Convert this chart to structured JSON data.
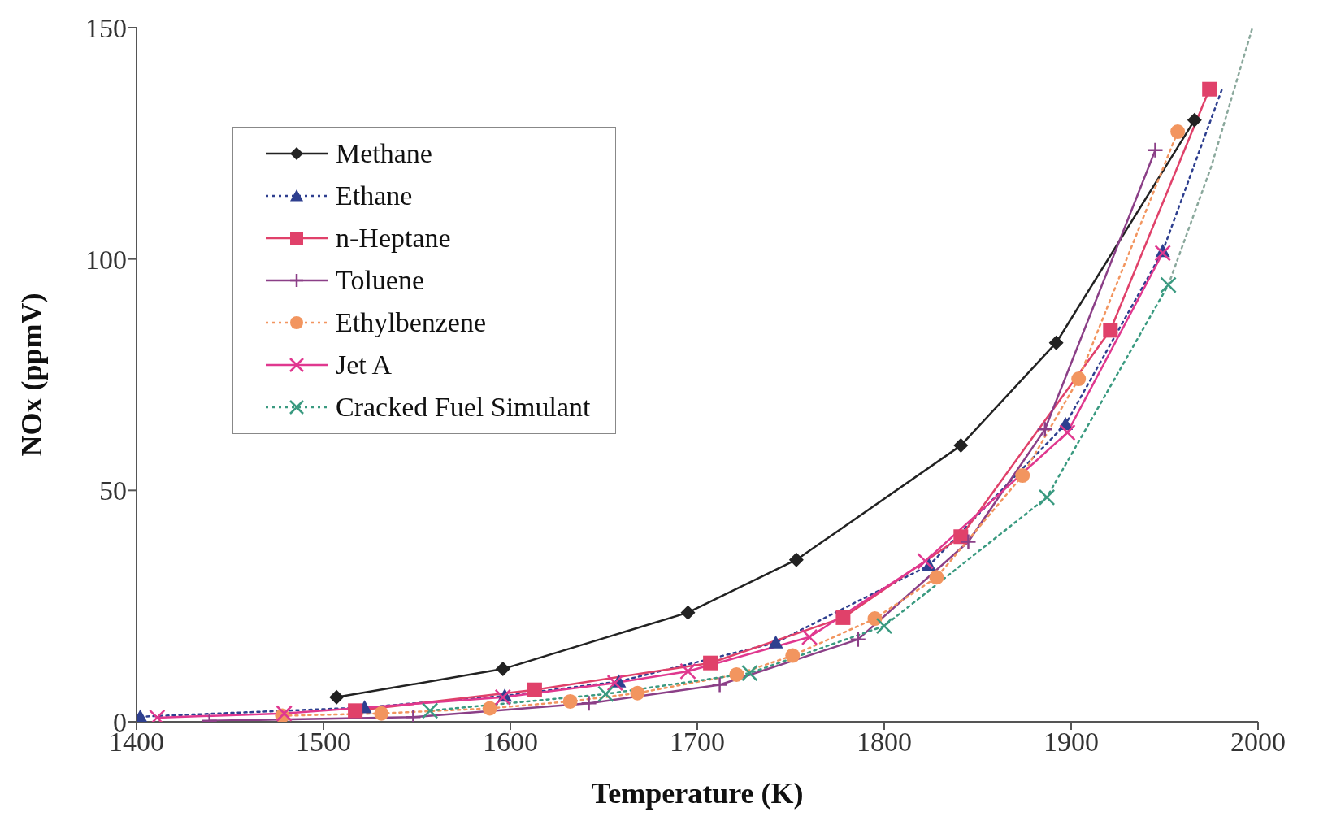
{
  "chart_data": {
    "type": "line",
    "xlabel": "Temperature (K)",
    "ylabel": "NOx (ppmV)",
    "xlim": [
      1400,
      2000
    ],
    "xticks": [
      1400,
      1500,
      1600,
      1700,
      1800,
      1900,
      2000
    ],
    "ylim": [
      0,
      150
    ],
    "yticks": [
      0,
      50,
      100,
      150
    ],
    "grid": false,
    "legend": "top left",
    "series": [
      {
        "name": "Methane",
        "color": "#222222",
        "marker": "diamond",
        "line_style": "solid",
        "x": [
          1507,
          1596,
          1695,
          1753,
          1841,
          1892,
          1966
        ],
        "values": [
          5.3,
          11.4,
          23.6,
          35,
          59.7,
          81.9,
          130
        ]
      },
      {
        "name": "Ethane",
        "color": "#2e3f8f",
        "marker": "triangle",
        "line_style": "dotted",
        "x": [
          1402,
          1522,
          1597,
          1658,
          1742,
          1824,
          1897,
          1949
        ],
        "values": [
          1.1,
          3.1,
          5.6,
          8.7,
          17.1,
          33.8,
          64.3,
          101.7
        ]
      },
      {
        "name": "n-Heptane",
        "color": "#e0416a",
        "marker": "square",
        "line_style": "solid",
        "x": [
          1517,
          1613,
          1707,
          1778,
          1841,
          1921,
          1974
        ],
        "values": [
          2.4,
          6.9,
          12.7,
          22.5,
          40,
          84.6,
          136.7
        ]
      },
      {
        "name": "Toluene",
        "color": "#8b3f87",
        "marker": "plus",
        "line_style": "solid",
        "x": [
          1439,
          1548,
          1642,
          1712,
          1786,
          1845,
          1886,
          1945
        ],
        "values": [
          0.2,
          1,
          4,
          8,
          17.8,
          38.9,
          63.2,
          123.5
        ]
      },
      {
        "name": "Ethylbenzene",
        "color": "#f2955f",
        "marker": "circle",
        "line_style": "dotted",
        "x": [
          1478,
          1531,
          1589,
          1632,
          1668,
          1721,
          1751,
          1795,
          1828,
          1874,
          1904,
          1957
        ],
        "values": [
          1.3,
          1.8,
          2.9,
          4.4,
          6.2,
          10.2,
          14.3,
          22.3,
          31.2,
          53.2,
          74.1,
          127.5
        ]
      },
      {
        "name": "Jet A",
        "color": "#e0388f",
        "marker": "cross",
        "line_style": "solid",
        "x": [
          1411,
          1479,
          1596,
          1656,
          1695,
          1760,
          1822,
          1898,
          1949
        ],
        "values": [
          0.9,
          1.8,
          5.3,
          8.4,
          10.9,
          18.3,
          34.7,
          62.5,
          101.3
        ]
      },
      {
        "name": "Cracked Fuel Simulant",
        "color": "#3a9a80",
        "marker": "cross",
        "line_style": "dotted",
        "x": [
          1557,
          1651,
          1728,
          1800,
          1887,
          1952
        ],
        "values": [
          2.4,
          6,
          10.5,
          20.7,
          48.5,
          94.4
        ]
      },
      {
        "color": "#2e3f8f",
        "marker": "none",
        "line_style": "dotted",
        "x": [
          1949,
          1981
        ],
        "values": [
          101.7,
          137
        ]
      },
      {
        "color": "#8aa89c",
        "marker": "none",
        "line_style": "dotted",
        "x": [
          1952,
          1975,
          1997
        ],
        "values": [
          94.4,
          120,
          150
        ]
      }
    ]
  }
}
